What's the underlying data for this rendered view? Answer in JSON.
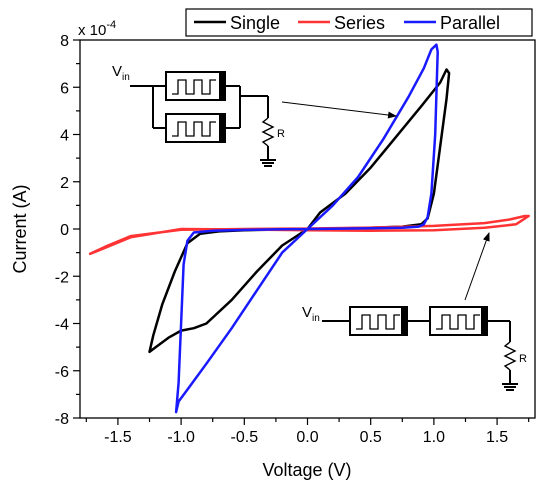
{
  "chart_data": {
    "type": "line",
    "title": "",
    "xlabel": "Voltage (V)",
    "ylabel": "Current (A)",
    "y_multiplier": "x 10",
    "y_multiplier_exp": "-4",
    "xlim": [
      -1.8,
      1.8
    ],
    "ylim": [
      -8,
      8
    ],
    "x_ticks": [
      -1.5,
      -1.0,
      -0.5,
      0.0,
      0.5,
      1.0,
      1.5
    ],
    "x_tick_labels": [
      "-1.5",
      "-1.0",
      "-0.5",
      "0.0",
      "0.5",
      "1.0",
      "1.5"
    ],
    "y_ticks": [
      -8,
      -6,
      -4,
      -2,
      0,
      2,
      4,
      6,
      8
    ],
    "y_tick_labels": [
      "-8",
      "-6",
      "-4",
      "-2",
      "0",
      "2",
      "4",
      "6",
      "8"
    ],
    "grid": false,
    "legend_position": "top-right",
    "series": [
      {
        "name": "Single",
        "color": "#000000",
        "x": [
          0,
          0.1,
          0.3,
          0.5,
          0.7,
          0.9,
          1.05,
          1.1,
          1.12,
          1.1,
          1.05,
          1.0,
          0.95,
          0.9,
          0.75,
          0.5,
          0.2,
          0,
          -0.2,
          -0.4,
          -0.6,
          -0.8,
          -0.9,
          -1.0,
          -1.1,
          -1.2,
          -1.25,
          -1.22,
          -1.15,
          -1.05,
          -0.95,
          -0.85,
          -0.7,
          -0.5,
          -0.2,
          0
        ],
        "y": [
          0,
          0.7,
          1.5,
          2.6,
          3.9,
          5.2,
          6.2,
          6.75,
          6.6,
          5.5,
          3.5,
          1.5,
          0.45,
          0.2,
          0.1,
          0.05,
          0.02,
          0,
          -0.7,
          -1.8,
          -3.0,
          -4.0,
          -4.2,
          -4.3,
          -4.6,
          -5.0,
          -5.2,
          -4.5,
          -3.2,
          -1.8,
          -0.6,
          -0.2,
          -0.1,
          -0.05,
          -0.02,
          0
        ]
      },
      {
        "name": "Series",
        "color": "#ff3333",
        "x": [
          0,
          0.5,
          1.0,
          1.4,
          1.6,
          1.72,
          1.75,
          1.65,
          1.4,
          1.0,
          0.5,
          0,
          -0.5,
          -1.0,
          -1.4,
          -1.65,
          -1.72,
          -1.6,
          -1.4,
          -1.0,
          -0.5,
          0
        ],
        "y": [
          0.02,
          0.06,
          0.13,
          0.25,
          0.4,
          0.55,
          0.55,
          0.2,
          0.05,
          -0.05,
          -0.07,
          -0.05,
          -0.02,
          0.0,
          -0.35,
          -0.9,
          -1.05,
          -0.75,
          -0.3,
          -0.03,
          0.0,
          0.02
        ]
      },
      {
        "name": "Parallel",
        "color": "#1a1aff",
        "x": [
          0,
          0.2,
          0.4,
          0.6,
          0.8,
          0.92,
          0.98,
          1.02,
          1.03,
          1.01,
          0.98,
          0.95,
          0.92,
          0.88,
          0.75,
          0.5,
          0.2,
          0,
          -0.2,
          -0.4,
          -0.6,
          -0.8,
          -0.95,
          -1.02,
          -1.04,
          -1.02,
          -1.0,
          -0.98,
          -0.95,
          -0.9,
          -0.75,
          -0.5,
          -0.2,
          0
        ],
        "y": [
          0,
          1.0,
          2.2,
          3.8,
          5.6,
          6.8,
          7.6,
          7.8,
          7.5,
          4.0,
          1.5,
          0.5,
          0.2,
          0.1,
          0.05,
          0.03,
          0.01,
          0,
          -1.0,
          -2.6,
          -4.2,
          -5.7,
          -6.8,
          -7.3,
          -7.75,
          -6.5,
          -4.0,
          -1.5,
          -0.5,
          -0.15,
          -0.07,
          -0.04,
          -0.01,
          0
        ]
      }
    ]
  }
}
